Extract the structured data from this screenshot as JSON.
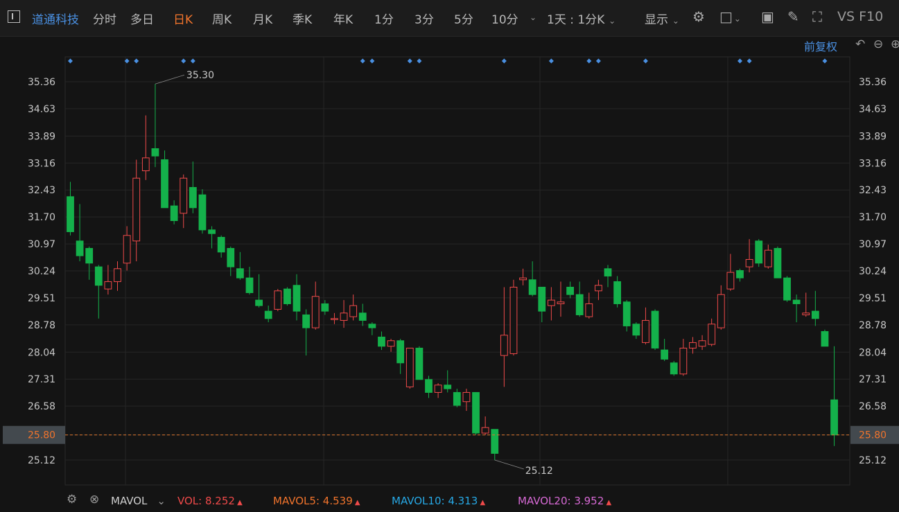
{
  "toolbar": {
    "stock_name": "道通科技",
    "periods": [
      "分时",
      "多日",
      "日K",
      "周K",
      "月K",
      "季K",
      "年K",
      "1分",
      "3分",
      "5分",
      "10分"
    ],
    "active_period": "日K",
    "interval_label": "1天 : 1分K",
    "display_label": "显示",
    "right_text": "VS F10"
  },
  "adjust_label": "前复权",
  "colors": {
    "up": "#f04a4a",
    "down": "#14b14b",
    "accent": "#f2742c",
    "blue": "#4a90e2"
  },
  "current_price_label": "25.80",
  "high_label": "35.30",
  "low_label": "25.12",
  "indicator": {
    "name": "MAVOL",
    "items": [
      {
        "label": "VOL:",
        "value": "8.252",
        "color": "#f04a4a"
      },
      {
        "label": "MAVOL5:",
        "value": "4.539",
        "color": "#f2742c"
      },
      {
        "label": "MAVOL10:",
        "value": "4.313",
        "color": "#27a9e6"
      },
      {
        "label": "MAVOL20:",
        "value": "3.952",
        "color": "#d86ad6"
      }
    ]
  },
  "chart_data": {
    "type": "candlestick",
    "ylim": [
      24.8,
      35.6
    ],
    "yticks": [
      "35.36",
      "34.63",
      "33.89",
      "33.16",
      "32.43",
      "31.70",
      "30.97",
      "30.24",
      "29.51",
      "28.78",
      "28.04",
      "27.31",
      "26.58",
      "25.80",
      "25.12"
    ],
    "current_price": 25.8,
    "candles": [
      {
        "o": 32.25,
        "h": 32.65,
        "l": 31.2,
        "c": 31.3
      },
      {
        "o": 31.05,
        "h": 32.05,
        "l": 30.5,
        "c": 30.65
      },
      {
        "o": 30.85,
        "h": 30.9,
        "l": 30.0,
        "c": 30.45
      },
      {
        "o": 30.35,
        "h": 30.4,
        "l": 28.95,
        "c": 29.85
      },
      {
        "o": 29.75,
        "h": 30.4,
        "l": 29.6,
        "c": 29.95
      },
      {
        "o": 29.95,
        "h": 30.5,
        "l": 29.7,
        "c": 30.3
      },
      {
        "o": 30.45,
        "h": 31.45,
        "l": 30.25,
        "c": 31.2
      },
      {
        "o": 31.05,
        "h": 33.25,
        "l": 30.5,
        "c": 32.75
      },
      {
        "o": 32.95,
        "h": 34.45,
        "l": 32.7,
        "c": 33.3
      },
      {
        "o": 33.55,
        "h": 35.3,
        "l": 33.05,
        "c": 33.35
      },
      {
        "o": 33.25,
        "h": 33.5,
        "l": 31.95,
        "c": 31.95
      },
      {
        "o": 32.0,
        "h": 32.15,
        "l": 31.5,
        "c": 31.6
      },
      {
        "o": 31.8,
        "h": 32.85,
        "l": 31.4,
        "c": 32.75
      },
      {
        "o": 32.5,
        "h": 33.2,
        "l": 31.8,
        "c": 31.95
      },
      {
        "o": 32.3,
        "h": 32.45,
        "l": 31.25,
        "c": 31.35
      },
      {
        "o": 31.35,
        "h": 31.45,
        "l": 30.85,
        "c": 31.25
      },
      {
        "o": 31.15,
        "h": 31.2,
        "l": 30.6,
        "c": 30.75
      },
      {
        "o": 30.85,
        "h": 30.9,
        "l": 30.1,
        "c": 30.35
      },
      {
        "o": 30.3,
        "h": 30.75,
        "l": 30.0,
        "c": 30.05
      },
      {
        "o": 30.05,
        "h": 30.35,
        "l": 29.6,
        "c": 29.65
      },
      {
        "o": 29.45,
        "h": 30.15,
        "l": 29.25,
        "c": 29.3
      },
      {
        "o": 29.15,
        "h": 29.3,
        "l": 28.85,
        "c": 28.95
      },
      {
        "o": 29.2,
        "h": 29.75,
        "l": 29.15,
        "c": 29.7
      },
      {
        "o": 29.75,
        "h": 29.8,
        "l": 29.3,
        "c": 29.35
      },
      {
        "o": 29.85,
        "h": 30.15,
        "l": 28.9,
        "c": 29.15
      },
      {
        "o": 29.05,
        "h": 29.2,
        "l": 27.95,
        "c": 28.7
      },
      {
        "o": 28.7,
        "h": 29.95,
        "l": 28.65,
        "c": 29.55
      },
      {
        "o": 29.35,
        "h": 29.45,
        "l": 29.05,
        "c": 29.15
      },
      {
        "o": 28.95,
        "h": 29.1,
        "l": 28.8,
        "c": 28.95
      },
      {
        "o": 28.9,
        "h": 29.45,
        "l": 28.7,
        "c": 29.1
      },
      {
        "o": 29.0,
        "h": 29.6,
        "l": 28.9,
        "c": 29.3
      },
      {
        "o": 29.1,
        "h": 29.35,
        "l": 28.75,
        "c": 28.9
      },
      {
        "o": 28.8,
        "h": 28.85,
        "l": 28.5,
        "c": 28.7
      },
      {
        "o": 28.45,
        "h": 28.6,
        "l": 28.1,
        "c": 28.2
      },
      {
        "o": 28.2,
        "h": 28.4,
        "l": 28.05,
        "c": 28.35
      },
      {
        "o": 28.35,
        "h": 28.4,
        "l": 27.45,
        "c": 27.75
      },
      {
        "o": 27.1,
        "h": 28.15,
        "l": 27.05,
        "c": 28.15
      },
      {
        "o": 28.15,
        "h": 28.2,
        "l": 27.3,
        "c": 27.3
      },
      {
        "o": 27.3,
        "h": 27.4,
        "l": 26.8,
        "c": 26.95
      },
      {
        "o": 26.95,
        "h": 27.2,
        "l": 26.8,
        "c": 27.15
      },
      {
        "o": 27.15,
        "h": 27.55,
        "l": 26.95,
        "c": 27.05
      },
      {
        "o": 26.95,
        "h": 27.05,
        "l": 26.55,
        "c": 26.6
      },
      {
        "o": 26.7,
        "h": 27.05,
        "l": 26.45,
        "c": 26.95
      },
      {
        "o": 26.95,
        "h": 26.95,
        "l": 25.8,
        "c": 25.85
      },
      {
        "o": 25.85,
        "h": 26.3,
        "l": 25.8,
        "c": 26.0
      },
      {
        "o": 25.95,
        "h": 25.95,
        "l": 25.12,
        "c": 25.3
      },
      {
        "o": 27.95,
        "h": 29.8,
        "l": 27.1,
        "c": 28.5
      },
      {
        "o": 28.0,
        "h": 30.0,
        "l": 27.95,
        "c": 29.8
      },
      {
        "o": 30.0,
        "h": 30.3,
        "l": 29.85,
        "c": 30.05
      },
      {
        "o": 30.0,
        "h": 30.5,
        "l": 29.55,
        "c": 29.6
      },
      {
        "o": 29.8,
        "h": 29.8,
        "l": 28.85,
        "c": 29.15
      },
      {
        "o": 29.3,
        "h": 29.8,
        "l": 28.9,
        "c": 29.45
      },
      {
        "o": 29.35,
        "h": 29.95,
        "l": 29.0,
        "c": 29.4
      },
      {
        "o": 29.8,
        "h": 29.95,
        "l": 29.5,
        "c": 29.6
      },
      {
        "o": 29.6,
        "h": 29.95,
        "l": 29.0,
        "c": 29.05
      },
      {
        "o": 29.0,
        "h": 29.65,
        "l": 28.95,
        "c": 29.35
      },
      {
        "o": 29.7,
        "h": 30.0,
        "l": 29.45,
        "c": 29.85
      },
      {
        "o": 30.3,
        "h": 30.4,
        "l": 29.8,
        "c": 30.1
      },
      {
        "o": 29.95,
        "h": 30.1,
        "l": 29.25,
        "c": 29.35
      },
      {
        "o": 29.4,
        "h": 29.45,
        "l": 28.6,
        "c": 28.75
      },
      {
        "o": 28.8,
        "h": 28.85,
        "l": 28.4,
        "c": 28.5
      },
      {
        "o": 28.3,
        "h": 29.25,
        "l": 28.25,
        "c": 28.9
      },
      {
        "o": 29.15,
        "h": 29.2,
        "l": 28.1,
        "c": 28.15
      },
      {
        "o": 28.1,
        "h": 28.4,
        "l": 27.8,
        "c": 27.85
      },
      {
        "o": 27.75,
        "h": 27.8,
        "l": 27.4,
        "c": 27.45
      },
      {
        "o": 27.45,
        "h": 28.4,
        "l": 27.4,
        "c": 28.15
      },
      {
        "o": 28.15,
        "h": 28.45,
        "l": 28.0,
        "c": 28.3
      },
      {
        "o": 28.2,
        "h": 28.5,
        "l": 28.1,
        "c": 28.35
      },
      {
        "o": 28.25,
        "h": 28.95,
        "l": 28.2,
        "c": 28.8
      },
      {
        "o": 28.7,
        "h": 29.85,
        "l": 28.65,
        "c": 29.6
      },
      {
        "o": 29.75,
        "h": 30.7,
        "l": 29.7,
        "c": 30.2
      },
      {
        "o": 30.25,
        "h": 30.3,
        "l": 29.95,
        "c": 30.05
      },
      {
        "o": 30.35,
        "h": 31.1,
        "l": 30.2,
        "c": 30.55
      },
      {
        "o": 31.05,
        "h": 31.1,
        "l": 30.35,
        "c": 30.45
      },
      {
        "o": 30.35,
        "h": 30.95,
        "l": 30.3,
        "c": 30.8
      },
      {
        "o": 30.85,
        "h": 30.9,
        "l": 30.05,
        "c": 30.05
      },
      {
        "o": 30.05,
        "h": 30.1,
        "l": 29.4,
        "c": 29.45
      },
      {
        "o": 29.45,
        "h": 29.6,
        "l": 28.85,
        "c": 29.35
      },
      {
        "o": 29.05,
        "h": 29.65,
        "l": 29.0,
        "c": 29.1
      },
      {
        "o": 29.15,
        "h": 29.7,
        "l": 28.75,
        "c": 28.95
      },
      {
        "o": 28.6,
        "h": 28.65,
        "l": 28.2,
        "c": 28.2
      },
      {
        "o": 26.75,
        "h": 28.2,
        "l": 25.5,
        "c": 25.8
      }
    ],
    "markers_x_index": [
      0,
      6,
      7,
      12,
      13,
      31,
      32,
      36,
      37,
      46,
      51,
      55,
      56,
      61,
      71,
      72,
      80
    ]
  }
}
